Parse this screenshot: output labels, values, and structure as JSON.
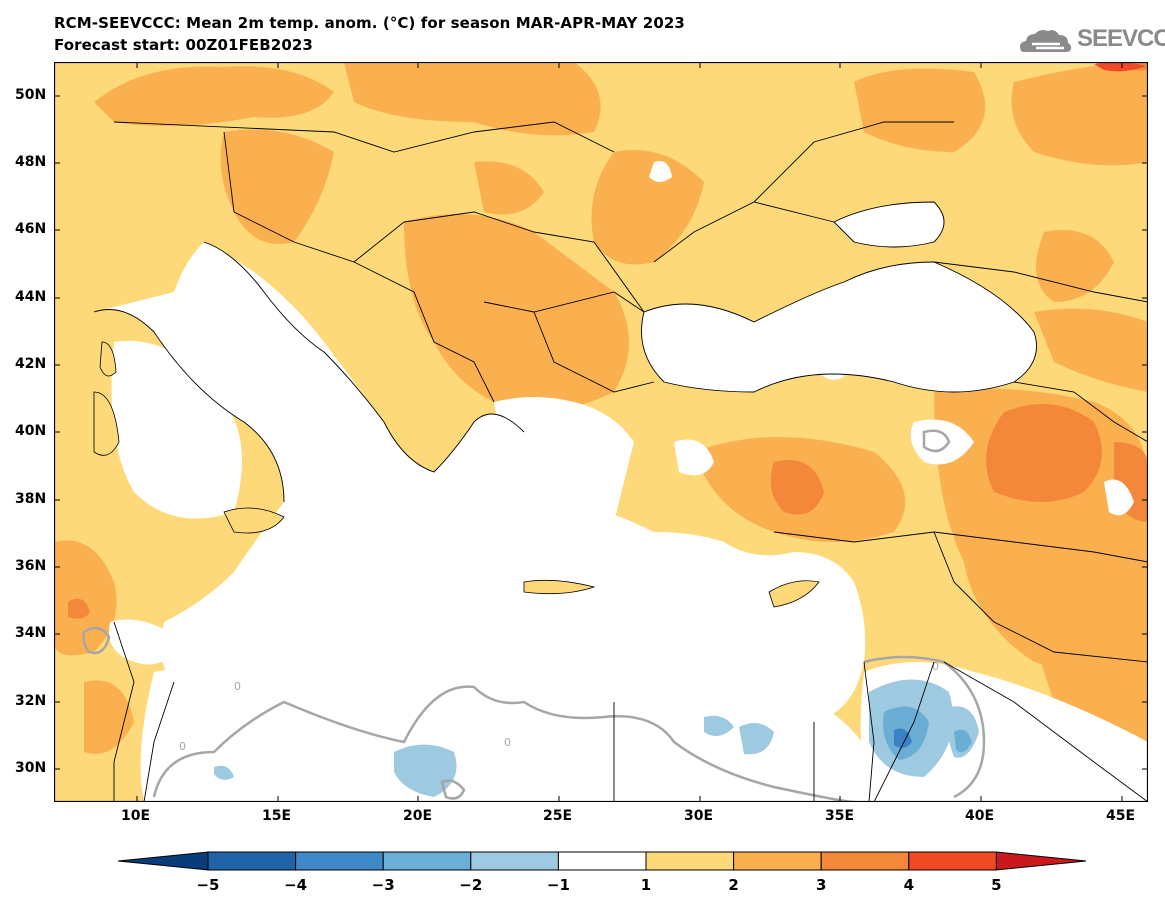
{
  "title": {
    "line1": "RCM-SEEVCCC: Mean 2m temp. anom. (°C) for season MAR-APR-MAY 2023",
    "line2": "Forecast start: 00Z01FEB2023"
  },
  "logo": {
    "text": "SEEVCCC",
    "icon": "cloud-icon"
  },
  "map": {
    "lat_labels": [
      "50N",
      "48N",
      "46N",
      "44N",
      "42N",
      "40N",
      "38N",
      "36N",
      "34N",
      "32N",
      "30N"
    ],
    "lon_labels": [
      "10E",
      "15E",
      "20E",
      "25E",
      "30E",
      "35E",
      "40E",
      "45E"
    ],
    "contour_label": "0",
    "colors": {
      "sea": "#ffffff",
      "anom_1_2": "#fdd97a",
      "anom_2_3": "#fbb050",
      "anom_3_4": "#f4883a",
      "anom_4_5": "#ef4a23",
      "anom_neg_1_2": "#9ecae1",
      "anom_neg_2_3": "#6aaed6",
      "anom_neg_3_4": "#3b82c4",
      "contour": "#a6a6a6",
      "border": "#000000"
    }
  },
  "colorbar": {
    "labels": [
      "−5",
      "−4",
      "−3",
      "−2",
      "−1",
      "1",
      "2",
      "3",
      "4",
      "5"
    ],
    "colors": [
      "#083d7a",
      "#1f63a8",
      "#3f8ac6",
      "#6baed6",
      "#9ecae1",
      "#ffffff",
      "#fdd97a",
      "#fbb050",
      "#f4883a",
      "#ef4a23",
      "#cb181d"
    ]
  }
}
